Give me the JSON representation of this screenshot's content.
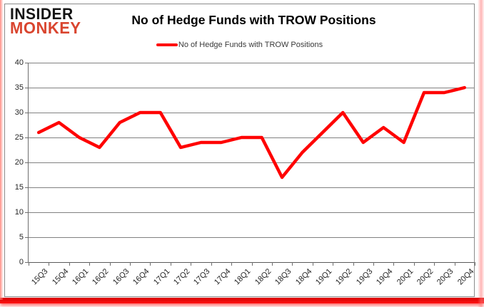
{
  "logo": {
    "line1": "INSIDER",
    "line2": "MONKEY"
  },
  "header": {
    "title": "No of Hedge Funds with TROW Positions"
  },
  "legend": {
    "label": "No of Hedge Funds with TROW Positions"
  },
  "chart_data": {
    "type": "line",
    "title": "No of Hedge Funds with TROW Positions",
    "categories": [
      "15Q3",
      "15Q4",
      "16Q1",
      "16Q2",
      "16Q3",
      "16Q4",
      "17Q1",
      "17Q2",
      "17Q3",
      "17Q4",
      "18Q1",
      "18Q2",
      "18Q3",
      "18Q4",
      "19Q1",
      "19Q2",
      "19Q3",
      "19Q4",
      "20Q1",
      "20Q2",
      "20Q3",
      "20Q4"
    ],
    "series": [
      {
        "name": "No of Hedge Funds with TROW Positions",
        "color": "#ff0000",
        "values": [
          26,
          28,
          25,
          23,
          28,
          30,
          30,
          23,
          24,
          24,
          25,
          25,
          17,
          22,
          26,
          30,
          24,
          27,
          24,
          34,
          34,
          35
        ]
      }
    ],
    "xlabel": "",
    "ylabel": "",
    "ylim": [
      0,
      40
    ],
    "yticks": [
      0,
      5,
      10,
      15,
      20,
      25,
      30,
      35,
      40
    ],
    "grid": true,
    "legend_position": "top-center"
  },
  "colors": {
    "series_line": "#ff0000",
    "logo_accent": "#d9452f",
    "logo_primary": "#141414",
    "gridline": "#818181",
    "axis_text": "#262626",
    "chart_border": "#8c8c8c",
    "bottom_bar": "#ff0000"
  }
}
